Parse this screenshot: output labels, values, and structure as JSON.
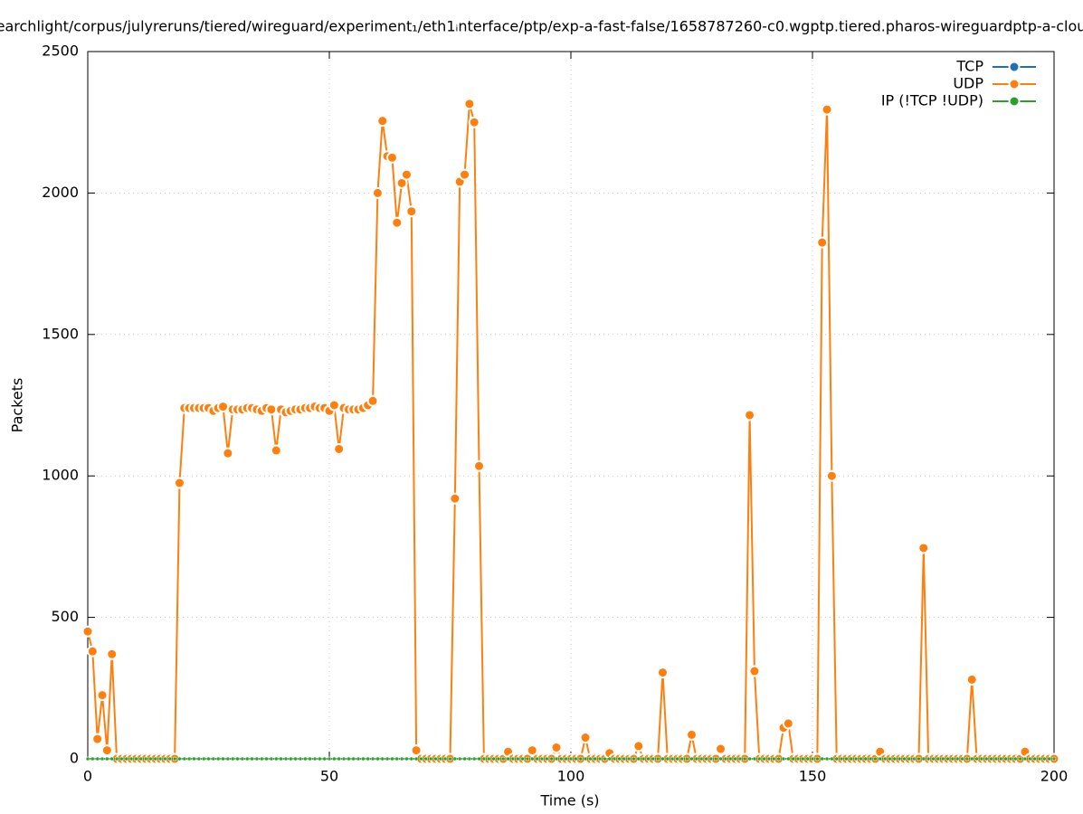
{
  "chart_data": {
    "type": "line",
    "title": "earchlight/corpus/julyreruns/tiered/wireguard/experiment₁/eth1ᵢnterface/ptp/exp-a-fast-false/1658787260-c0.wgptp.tiered.pharos-wireguardptp-a-clou",
    "x_label": "Time (s)",
    "y_label": "Packets",
    "xlim": [
      0,
      200
    ],
    "ylim": [
      0,
      2500
    ],
    "xticks": [
      0,
      50,
      100,
      150,
      200
    ],
    "yticks": [
      0,
      500,
      1000,
      1500,
      2000,
      2500
    ],
    "grid": true,
    "legend": "top-right",
    "x": [
      0,
      1,
      2,
      3,
      4,
      5,
      6,
      7,
      8,
      9,
      10,
      11,
      12,
      13,
      14,
      15,
      16,
      17,
      18,
      19,
      20,
      21,
      22,
      23,
      24,
      25,
      26,
      27,
      28,
      29,
      30,
      31,
      32,
      33,
      34,
      35,
      36,
      37,
      38,
      39,
      40,
      41,
      42,
      43,
      44,
      45,
      46,
      47,
      48,
      49,
      50,
      51,
      52,
      53,
      54,
      55,
      56,
      57,
      58,
      59,
      60,
      61,
      62,
      63,
      64,
      65,
      66,
      67,
      68,
      69,
      70,
      71,
      72,
      73,
      74,
      75,
      76,
      77,
      78,
      79,
      80,
      81,
      82,
      83,
      84,
      85,
      86,
      87,
      88,
      89,
      90,
      91,
      92,
      93,
      94,
      95,
      96,
      97,
      98,
      99,
      100,
      101,
      102,
      103,
      104,
      105,
      106,
      107,
      108,
      109,
      110,
      111,
      112,
      113,
      114,
      115,
      116,
      117,
      118,
      119,
      120,
      121,
      122,
      123,
      124,
      125,
      126,
      127,
      128,
      129,
      130,
      131,
      132,
      133,
      134,
      135,
      136,
      137,
      138,
      139,
      140,
      141,
      142,
      143,
      144,
      145,
      146,
      147,
      148,
      149,
      150,
      151,
      152,
      153,
      154,
      155,
      156,
      157,
      158,
      159,
      160,
      161,
      162,
      163,
      164,
      165,
      166,
      167,
      168,
      169,
      170,
      171,
      172,
      173,
      174,
      175,
      176,
      177,
      178,
      179,
      180,
      181,
      182,
      183,
      184,
      185,
      186,
      187,
      188,
      189,
      190,
      191,
      192,
      193,
      194,
      195,
      196,
      197,
      198,
      199,
      200
    ],
    "series": [
      {
        "name": "UDP",
        "color": "#ff7f0e",
        "point_size": 5.5,
        "values": [
          450,
          380,
          70,
          225,
          30,
          370,
          0,
          0,
          0,
          0,
          0,
          0,
          0,
          0,
          0,
          0,
          0,
          0,
          0,
          975,
          1240,
          1240,
          1240,
          1240,
          1240,
          1240,
          1230,
          1240,
          1245,
          1080,
          1235,
          1235,
          1235,
          1240,
          1240,
          1235,
          1230,
          1240,
          1235,
          1090,
          1235,
          1225,
          1230,
          1235,
          1235,
          1240,
          1240,
          1245,
          1240,
          1240,
          1230,
          1250,
          1095,
          1240,
          1235,
          1235,
          1235,
          1240,
          1250,
          1265,
          2000,
          2255,
          2130,
          2125,
          1895,
          2035,
          2065,
          1935,
          30,
          0,
          0,
          0,
          0,
          0,
          0,
          0,
          920,
          2040,
          2065,
          2315,
          2250,
          1035,
          0,
          0,
          0,
          0,
          0,
          25,
          0,
          0,
          0,
          0,
          30,
          0,
          0,
          0,
          0,
          40,
          0,
          0,
          0,
          0,
          0,
          75,
          0,
          0,
          0,
          0,
          20,
          0,
          0,
          0,
          0,
          0,
          45,
          0,
          0,
          0,
          0,
          305,
          0,
          0,
          0,
          0,
          0,
          85,
          0,
          0,
          0,
          0,
          0,
          35,
          0,
          0,
          0,
          0,
          0,
          1215,
          310,
          0,
          0,
          0,
          0,
          0,
          110,
          125,
          0,
          0,
          0,
          0,
          0,
          0,
          1825,
          2295,
          1000,
          0,
          0,
          0,
          0,
          0,
          0,
          0,
          0,
          0,
          25,
          0,
          0,
          0,
          0,
          0,
          0,
          0,
          0,
          745,
          0,
          0,
          0,
          0,
          0,
          0,
          0,
          0,
          0,
          280,
          0,
          0,
          0,
          0,
          0,
          0,
          0,
          0,
          0,
          0,
          25,
          0,
          0,
          0,
          0,
          0,
          0
        ]
      },
      {
        "name": "TCP",
        "color": "#1f6fb4",
        "point_size": 2,
        "values": [
          0,
          0,
          0,
          0,
          0,
          0,
          0,
          0,
          0,
          0,
          0,
          0,
          0,
          0,
          0,
          0,
          0,
          0,
          0,
          0,
          0,
          0,
          0,
          0,
          0,
          0,
          0,
          0,
          0,
          0,
          0,
          0,
          0,
          0,
          0,
          0,
          0,
          0,
          0,
          0,
          0,
          0,
          0,
          0,
          0,
          0,
          0,
          0,
          0,
          0,
          0,
          0,
          0,
          0,
          0,
          0,
          0,
          0,
          0,
          0,
          0,
          0,
          0,
          0,
          0,
          0,
          0,
          0,
          0,
          0,
          0,
          0,
          0,
          0,
          0,
          0,
          0,
          0,
          0,
          0,
          0,
          0,
          0,
          0,
          0,
          0,
          0,
          0,
          0,
          0,
          0,
          0,
          0,
          0,
          0,
          0,
          0,
          0,
          0,
          0,
          0,
          0,
          0,
          0,
          0,
          0,
          0,
          0,
          0,
          0,
          0,
          0,
          0,
          0,
          0,
          0,
          0,
          0,
          0,
          0,
          0,
          0,
          0,
          0,
          0,
          0,
          0,
          0,
          0,
          0,
          0,
          0,
          0,
          0,
          0,
          0,
          0,
          0,
          0,
          0,
          0,
          0,
          0,
          0,
          0,
          0,
          0,
          0,
          0,
          0,
          0,
          0,
          0,
          0,
          0,
          0,
          0,
          0,
          0,
          0,
          0,
          0,
          0,
          0,
          0,
          0,
          0,
          0,
          0,
          0,
          0,
          0,
          0,
          0,
          0,
          0,
          0,
          0,
          0,
          0,
          0,
          0,
          0,
          0,
          0,
          0,
          0,
          0,
          0,
          0,
          0,
          0,
          0,
          0,
          0,
          0,
          0,
          0,
          0,
          0,
          0
        ]
      },
      {
        "name": "IP (!TCP  !UDP)",
        "color": "#2ca02c",
        "point_size": 2,
        "values": [
          0,
          0,
          0,
          0,
          0,
          0,
          0,
          0,
          0,
          0,
          0,
          0,
          0,
          0,
          0,
          0,
          0,
          0,
          0,
          0,
          0,
          0,
          0,
          0,
          0,
          0,
          0,
          0,
          0,
          0,
          0,
          0,
          0,
          0,
          0,
          0,
          0,
          0,
          0,
          0,
          0,
          0,
          0,
          0,
          0,
          0,
          0,
          0,
          0,
          0,
          0,
          0,
          0,
          0,
          0,
          0,
          0,
          0,
          0,
          0,
          0,
          0,
          0,
          0,
          0,
          0,
          0,
          0,
          0,
          0,
          0,
          0,
          0,
          0,
          0,
          0,
          0,
          0,
          0,
          0,
          0,
          0,
          0,
          0,
          0,
          0,
          0,
          0,
          0,
          0,
          0,
          0,
          0,
          0,
          0,
          0,
          0,
          0,
          0,
          0,
          0,
          0,
          0,
          0,
          0,
          0,
          0,
          0,
          0,
          0,
          0,
          0,
          0,
          0,
          0,
          0,
          0,
          0,
          0,
          0,
          0,
          0,
          0,
          0,
          0,
          0,
          0,
          0,
          0,
          0,
          0,
          0,
          0,
          0,
          0,
          0,
          0,
          0,
          0,
          0,
          0,
          0,
          0,
          0,
          0,
          0,
          0,
          0,
          0,
          0,
          0,
          0,
          0,
          0,
          0,
          0,
          0,
          0,
          0,
          0,
          0,
          0,
          0,
          0,
          0,
          0,
          0,
          0,
          0,
          0,
          0,
          0,
          0,
          0,
          0,
          0,
          0,
          0,
          0,
          0,
          0,
          0,
          0,
          0,
          0,
          0,
          0,
          0,
          0,
          0,
          0,
          0,
          0,
          0,
          0,
          0,
          0,
          0,
          0,
          0,
          0
        ]
      }
    ],
    "legend_order": [
      "TCP",
      "UDP",
      "IP (!TCP  !UDP)"
    ]
  }
}
